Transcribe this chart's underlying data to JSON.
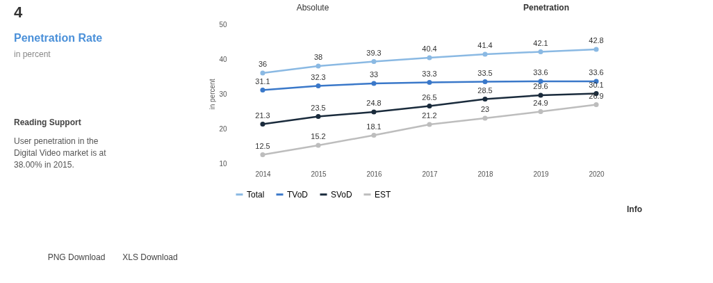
{
  "chart_data": {
    "type": "line",
    "title": "Penetration Rate",
    "subtitle": "in percent",
    "ylabel": "in percent",
    "categories": [
      "2014",
      "2015",
      "2016",
      "2017",
      "2018",
      "2019",
      "2020"
    ],
    "series": [
      {
        "name": "Total",
        "color": "#8ab9e3",
        "values": [
          36,
          38,
          39.3,
          40.4,
          41.4,
          42.1,
          42.8
        ]
      },
      {
        "name": "TVoD",
        "color": "#3a78c9",
        "values": [
          31.1,
          32.3,
          33,
          33.3,
          33.5,
          33.6,
          33.6
        ]
      },
      {
        "name": "SVoD",
        "color": "#1a2b3c",
        "values": [
          21.3,
          23.5,
          24.8,
          26.5,
          28.5,
          29.6,
          30.1
        ]
      },
      {
        "name": "EST",
        "color": "#bdbdbd",
        "values": [
          12.5,
          15.2,
          18.1,
          21.2,
          23,
          24.9,
          26.9
        ]
      }
    ],
    "ylim": [
      10,
      50
    ],
    "yticks": [
      10,
      20,
      30,
      40,
      50
    ],
    "grid": false,
    "legend": "bottom",
    "marker": "circle",
    "line_style": "solid",
    "data_labels": true,
    "annotations": [
      "4",
      "Reading Support",
      "User penetration in the Digital Video market is at 38.00% in 2015.",
      "PNG Download",
      "XLS Download",
      "Absolute",
      "Penetration",
      "Info"
    ]
  }
}
